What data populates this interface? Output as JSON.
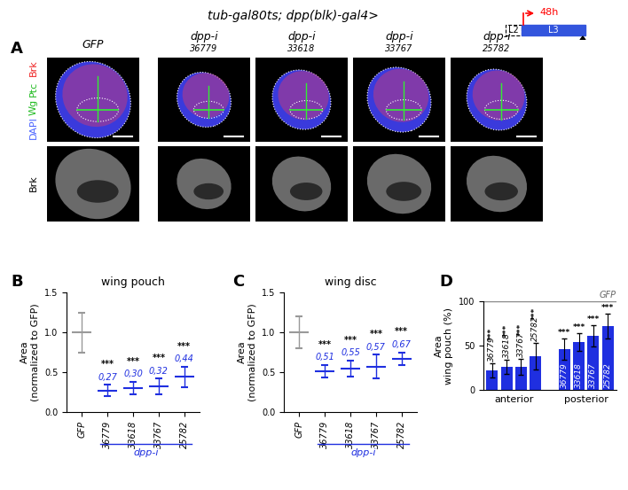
{
  "header": {
    "genotype": "tub-gal80ts; dpp(blk)-gal4>",
    "stages": [
      "L2",
      "L3"
    ],
    "time": "48h"
  },
  "panel_A": {
    "panel": "A",
    "columns": [
      {
        "title": "GFP"
      },
      {
        "title": "dpp-i",
        "subtitle": "36779"
      },
      {
        "title": "dpp-i",
        "subtitle": "33618"
      },
      {
        "title": "dpp-i",
        "subtitle": "33767"
      },
      {
        "title": "dpp-i",
        "subtitle": "25782"
      }
    ],
    "row_labels": [
      [
        {
          "text": "DAPI",
          "color": "#4a63ff"
        },
        {
          "text": "Wg",
          "color": "#22bb22"
        },
        {
          "text": "Ptc",
          "color": "#22bb22"
        },
        {
          "text": "Brk",
          "color": "#ee2222"
        }
      ],
      [
        {
          "text": "Brk",
          "color": "#000000"
        }
      ]
    ]
  },
  "chart_data": [
    {
      "panel": "B",
      "type": "scatter",
      "title": "wing pouch",
      "ylabel": "Area\n(normalized to GFP)",
      "categories": [
        "GFP",
        "36779",
        "33618",
        "33767",
        "25782"
      ],
      "values": [
        1.0,
        0.27,
        0.3,
        0.32,
        0.44
      ],
      "errors": [
        0.25,
        0.07,
        0.08,
        0.1,
        0.13
      ],
      "value_labels": [
        null,
        "0,27",
        "0,30",
        "0,32",
        "0,44"
      ],
      "significance": [
        null,
        "***",
        "***",
        "***",
        "***"
      ],
      "group": {
        "label": "dpp-i",
        "from": "36779",
        "to": "25782"
      },
      "colors": [
        "#999999",
        "#1f2fe0",
        "#1f2fe0",
        "#1f2fe0",
        "#1f2fe0"
      ],
      "ylim": [
        0,
        1.5
      ],
      "yticks": [
        {
          "value": 0,
          "label": "0.0"
        },
        {
          "value": 0.5,
          "label": "0.5"
        },
        {
          "value": 1.0,
          "label": "1.0"
        },
        {
          "value": 1.5,
          "label": "1.5"
        }
      ]
    },
    {
      "panel": "C",
      "type": "scatter",
      "title": "wing disc",
      "ylabel": "Area\n(normalized to GFP)",
      "categories": [
        "GFP",
        "36779",
        "33618",
        "33767",
        "25782"
      ],
      "values": [
        1.0,
        0.51,
        0.55,
        0.57,
        0.67
      ],
      "errors": [
        0.2,
        0.08,
        0.1,
        0.15,
        0.08
      ],
      "value_labels": [
        null,
        "0,51",
        "0,55",
        "0,57",
        "0,67"
      ],
      "significance": [
        null,
        "***",
        "***",
        "***",
        "***"
      ],
      "group": {
        "label": "dpp-i",
        "from": "36779",
        "to": "25782"
      },
      "colors": [
        "#999999",
        "#1f2fe0",
        "#1f2fe0",
        "#1f2fe0",
        "#1f2fe0"
      ],
      "ylim": [
        0,
        1.5
      ],
      "yticks": [
        {
          "value": 0,
          "label": "0.0"
        },
        {
          "value": 0.5,
          "label": "0.5"
        },
        {
          "value": 1.0,
          "label": "1.0"
        },
        {
          "value": 1.5,
          "label": "1.5"
        }
      ]
    },
    {
      "panel": "D",
      "type": "bar",
      "ylabel": "Area\nwing pouch (%)",
      "categories": [
        "36779",
        "33618",
        "33767",
        "25782"
      ],
      "series": [
        {
          "name": "anterior",
          "color": "#1f2fe0",
          "values": [
            22,
            26,
            26,
            38
          ],
          "errors": [
            8,
            8,
            9,
            15
          ]
        },
        {
          "name": "posterior",
          "color": "#1f2fe0",
          "values": [
            46,
            54,
            61,
            72
          ],
          "errors": [
            12,
            10,
            12,
            14
          ]
        }
      ],
      "significance": "***",
      "reference": {
        "value": 100,
        "label": "GFP"
      },
      "ylim": [
        0,
        100
      ],
      "yticks": [
        0,
        50,
        100
      ]
    }
  ]
}
